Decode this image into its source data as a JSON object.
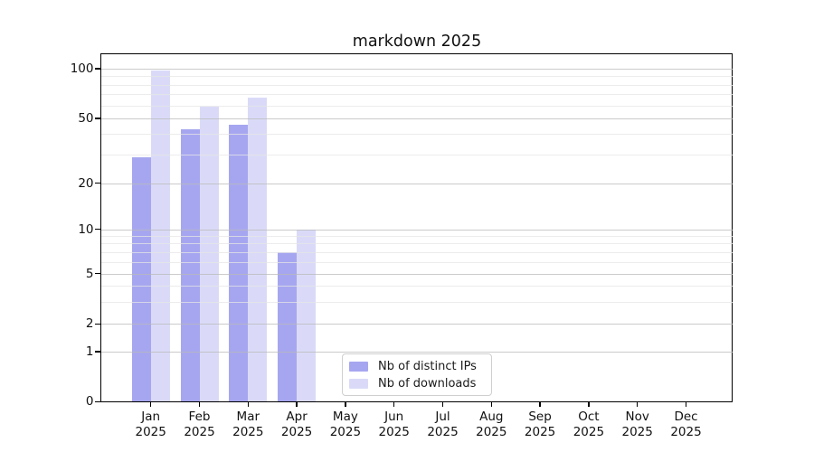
{
  "chart_data": {
    "type": "bar",
    "title": "markdown 2025",
    "categories": [
      "Jan",
      "Feb",
      "Mar",
      "Apr",
      "May",
      "Jun",
      "Jul",
      "Aug",
      "Sep",
      "Oct",
      "Nov",
      "Dec"
    ],
    "x_year_label": "2025",
    "series": [
      {
        "name": "Nb of distinct IPs",
        "color": "#a6a6f0",
        "values": [
          29,
          43,
          46,
          7,
          0,
          0,
          0,
          0,
          0,
          0,
          0,
          0
        ]
      },
      {
        "name": "Nb of downloads",
        "color": "#dadaf8",
        "values": [
          98,
          59,
          67,
          10,
          0,
          0,
          0,
          0,
          0,
          0,
          0,
          0
        ]
      }
    ],
    "y_axis": {
      "scale": "symlog",
      "major_ticks": [
        0,
        1,
        2,
        5,
        10,
        20,
        50,
        100
      ],
      "minor_gridlines": [
        3,
        4,
        6,
        7,
        8,
        9,
        30,
        40,
        60,
        70,
        80,
        90
      ],
      "range": [
        0,
        122
      ]
    },
    "xlabel": "",
    "ylabel": "",
    "grid": true,
    "legend": {
      "position": "lower-center-inside"
    }
  }
}
